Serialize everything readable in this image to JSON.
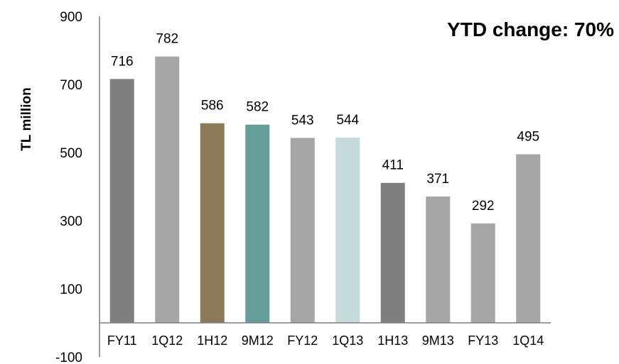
{
  "chart_data": {
    "type": "bar",
    "title": "",
    "xlabel": "",
    "ylabel": "TL million",
    "annotation": "YTD change: 70%",
    "ylim": [
      -100,
      900
    ],
    "yticks": [
      900,
      700,
      500,
      300,
      100,
      -100
    ],
    "grid": false,
    "categories": [
      "FY11",
      "1Q12",
      "1H12",
      "9M12",
      "FY12",
      "1Q13",
      "1H13",
      "9M13",
      "FY13",
      "1Q14"
    ],
    "values": [
      716,
      782,
      586,
      582,
      543,
      544,
      411,
      371,
      292,
      495
    ],
    "data_labels": [
      "716",
      "782",
      "586",
      "582",
      "543",
      "544",
      "411",
      "371",
      "292",
      "495"
    ],
    "colors": [
      "#7f7f7f",
      "#a6a6a6",
      "#8c7a5b",
      "#679e9a",
      "#a6a6a6",
      "#c5dbd9",
      "#7f7f7f",
      "#a6a6a6",
      "#a6a6a6",
      "#a6a6a6"
    ],
    "axis_color": "#7f7f7f"
  }
}
